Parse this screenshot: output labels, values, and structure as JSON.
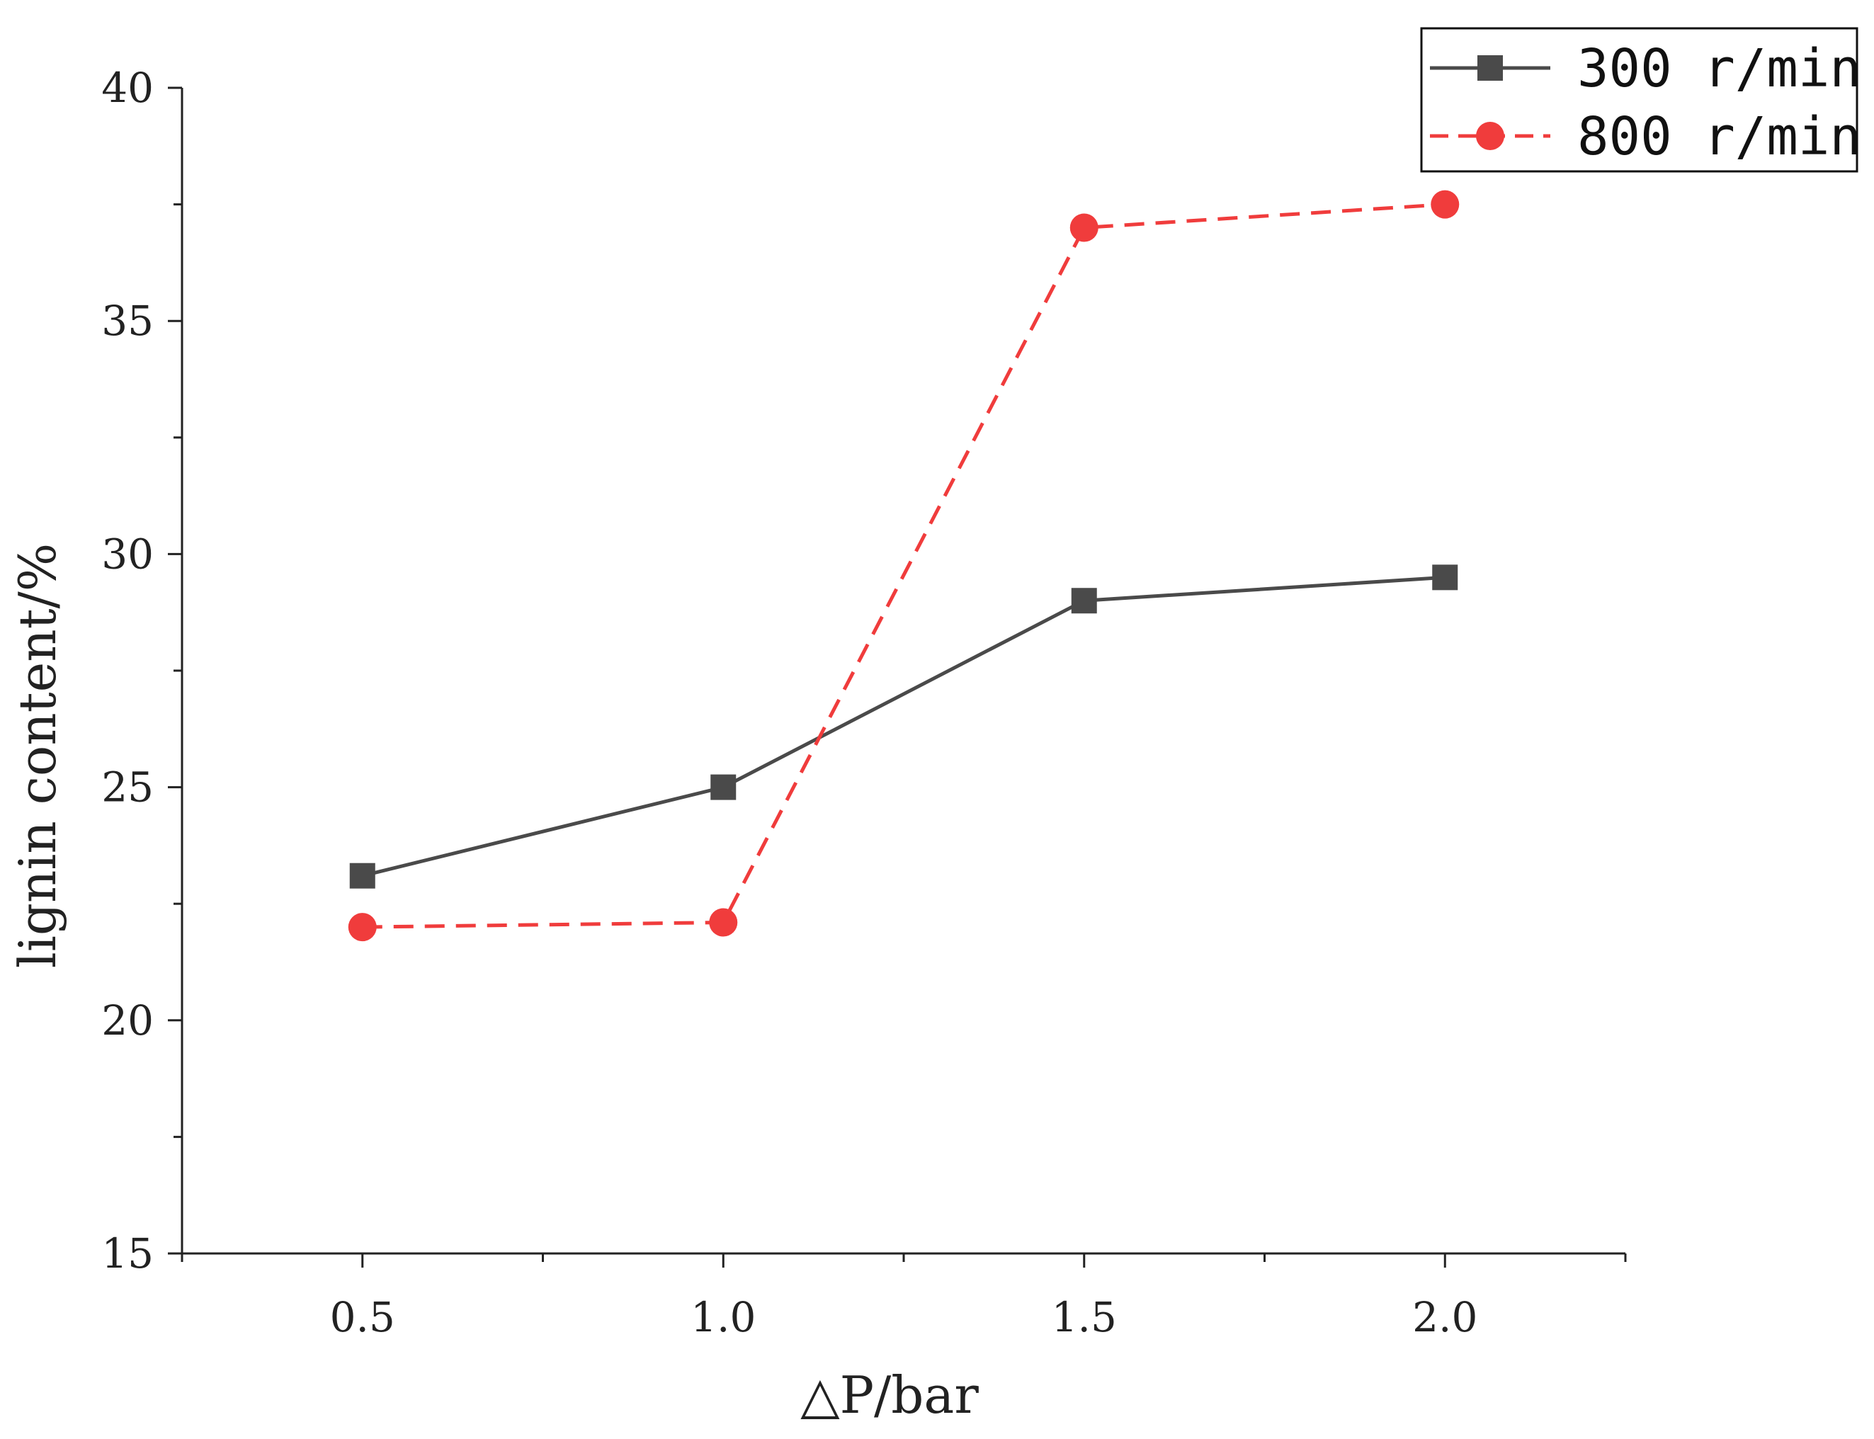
{
  "chart_data": {
    "type": "line",
    "title": "",
    "xlabel": "△P/bar",
    "ylabel": "lignin content/%",
    "x": [
      0.5,
      1.0,
      1.5,
      2.0
    ],
    "x_tick_labels": [
      "0.5",
      "1.0",
      "1.5",
      "2.0"
    ],
    "y_tick_values": [
      15,
      20,
      25,
      30,
      35,
      40
    ],
    "y_tick_labels": [
      "15",
      "20",
      "25",
      "30",
      "35",
      "40"
    ],
    "xlim": [
      0.25,
      2.25
    ],
    "ylim": [
      15,
      40
    ],
    "x_minor_step": 0.25,
    "y_minor_step": 2.5,
    "grid": false,
    "legend_position": "top-right",
    "series": [
      {
        "name": "300 r/min",
        "values": [
          23.1,
          25.0,
          29.0,
          29.5
        ],
        "color": "#4a4a4a",
        "line_style": "solid",
        "marker": "square"
      },
      {
        "name": "800 r/min",
        "values": [
          22.0,
          22.1,
          37.0,
          37.5
        ],
        "color": "#f03c3c",
        "line_style": "dashed",
        "marker": "circle"
      }
    ]
  }
}
